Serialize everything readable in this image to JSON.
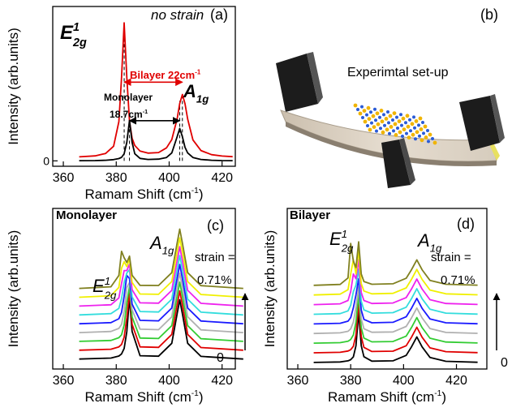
{
  "chart_data": [
    {
      "type": "line",
      "xlim": [
        356,
        425
      ],
      "ylim": [
        -3.5,
        100
      ],
      "xticks": [
        360,
        380,
        400,
        420
      ],
      "yticks": [
        0
      ],
      "x": [
        366,
        372,
        376,
        379,
        381,
        382,
        383,
        384,
        385,
        386,
        387,
        389,
        392,
        396,
        399,
        401,
        403,
        404,
        405,
        406,
        407,
        409,
        412,
        416,
        420,
        424
      ],
      "series": [
        {
          "color": "#e00000",
          "values": [
            2.6,
            3.2,
            4.8,
            9.5,
            25.4,
            54,
            89.4,
            54,
            25.6,
            14.7,
            10,
            6.3,
            5,
            5.4,
            8.4,
            13.8,
            27.2,
            37.2,
            43,
            37,
            27,
            13.5,
            6.7,
            4,
            3.1,
            2.7
          ]
        },
        {
          "color": "#000000",
          "values": [
            0.1,
            0.2,
            0.4,
            0.8,
            1.5,
            2.3,
            4.6,
            12,
            26.2,
            12,
            4.6,
            1.6,
            0.9,
            1.1,
            2.2,
            5.1,
            15.6,
            21,
            15.6,
            8.8,
            5.1,
            2.2,
            0.9,
            0.4,
            0.2,
            0.1
          ]
        }
      ],
      "x_label": {
        "text": "Ramam Shift (cm",
        "sup": "-1",
        "end": ")"
      },
      "y_label": "Intensity (arb.units)",
      "dashed_x": [
        383,
        385,
        404,
        405
      ],
      "arrows": [
        {
          "from": 383,
          "to": 405,
          "y": 51,
          "color": "#e00000"
        },
        {
          "from": 385,
          "to": 404,
          "y": 26,
          "color": "#000000"
        }
      ],
      "annotations": [
        {
          "text": "no strain",
          "style": "italic"
        },
        {
          "text": "(a)",
          "style": "normal"
        },
        {
          "text": "E",
          "sub": "2g",
          "sup": "1",
          "style": "bold-italic"
        },
        {
          "text": "A",
          "sub": "1g",
          "style": "bold-italic"
        },
        {
          "text": "Bilayer 22cm",
          "sup": "-1",
          "style": "bold",
          "color": "#e00000"
        },
        {
          "text": "Monolayer",
          "style": "bold"
        },
        {
          "text": "18.7cm",
          "sup": "-1",
          "style": "bold"
        }
      ]
    },
    {
      "type": "line",
      "xlim": [
        356,
        425
      ],
      "ylim": [
        0,
        100
      ],
      "xticks": [
        360,
        380,
        400,
        420
      ],
      "x": [
        366,
        378,
        381,
        382,
        383,
        384,
        385,
        386,
        389,
        396,
        401,
        403,
        404,
        405,
        407,
        412,
        428
      ],
      "series": [
        {
          "color": "#000000",
          "values": [
            6.2,
            6.8,
            8.1,
            9.4,
            12.8,
            23.3,
            44.3,
            23.4,
            8.3,
            8,
            16,
            34.4,
            43.1,
            34.4,
            16,
            7.9,
            6.2
          ]
        },
        {
          "color": "#e00000",
          "values": [
            11.7,
            12.3,
            13.8,
            15.3,
            19.8,
            31.8,
            47.8,
            27.9,
            13.8,
            13.5,
            21.5,
            39.9,
            48.6,
            39.9,
            21.5,
            13.4,
            11.7
          ]
        },
        {
          "color": "#33cc33",
          "values": [
            17.2,
            17.8,
            19.5,
            21.3,
            27.3,
            41.3,
            51.3,
            32.4,
            19.3,
            19,
            27,
            45.4,
            54.1,
            45.4,
            27,
            18.9,
            17.2
          ]
        },
        {
          "color": "#b0b0b0",
          "values": [
            22.7,
            23.4,
            25.3,
            27.8,
            35.8,
            50.8,
            53.8,
            36.9,
            24.8,
            24.5,
            32.5,
            50.9,
            59.6,
            50.9,
            32.5,
            24.4,
            22.7
          ]
        },
        {
          "color": "#1a1aff",
          "values": [
            28.2,
            28.9,
            31.3,
            35.3,
            45.3,
            58.3,
            56.3,
            40.4,
            30.3,
            30,
            38,
            56.4,
            65.1,
            56.4,
            38,
            29.9,
            28.2
          ]
        },
        {
          "color": "#33dddd",
          "values": [
            33.7,
            34.5,
            37.8,
            43.8,
            53.8,
            59.8,
            61.8,
            44.9,
            35.8,
            35.5,
            43.5,
            61.9,
            70.6,
            61.9,
            43.5,
            35.4,
            33.7
          ]
        },
        {
          "color": "#ee22ee",
          "values": [
            39.2,
            40,
            44.3,
            53.3,
            61.3,
            61.3,
            65.3,
            49.4,
            41.2,
            41,
            49,
            67.4,
            76.1,
            67.4,
            49,
            40.9,
            39.2
          ]
        },
        {
          "color": "#f0f000",
          "values": [
            44.7,
            45.6,
            50.8,
            62.8,
            66.8,
            63.8,
            68.8,
            53.9,
            46.7,
            46.5,
            54.5,
            72.9,
            81.6,
            72.9,
            54.5,
            46.4,
            44.7
          ]
        },
        {
          "color": "#808020",
          "values": [
            50.2,
            51.2,
            58.3,
            73.3,
            69.3,
            66.3,
            70.3,
            58.4,
            52.1,
            52,
            60,
            78.4,
            87.1,
            78.4,
            60,
            51.9,
            50.2
          ]
        }
      ],
      "x_label": {
        "text": "Ramam Shift (cm",
        "sup": "-1",
        "end": ")"
      },
      "y_label": "Intensity (arb.units)",
      "annotations": [
        {
          "text": "Monolayer",
          "style": "bold"
        },
        {
          "text": "E",
          "sub": "2g",
          "sup": "1",
          "style": "serif-italic"
        },
        {
          "text": "A",
          "sub": "1g",
          "style": "serif-italic"
        },
        {
          "text": "(c)",
          "style": "normal"
        },
        {
          "text": "strain =",
          "style": "normal"
        },
        {
          "text": "0.71%",
          "style": "normal"
        },
        {
          "text": "0",
          "style": "normal"
        }
      ]
    },
    {
      "type": "line",
      "xlim": [
        356,
        431.5
      ],
      "ylim": [
        0,
        100
      ],
      "xticks": [
        360,
        380,
        400,
        420
      ],
      "x": [
        366,
        376,
        379,
        380,
        381,
        382,
        383,
        384,
        385,
        388,
        396,
        401,
        403,
        405,
        407,
        410,
        416,
        428
      ],
      "series": [
        {
          "color": "#000000",
          "values": [
            4.1,
            4.4,
            5.1,
            5.8,
            7.6,
            14.5,
            35.2,
            14.5,
            7.7,
            4.9,
            5.1,
            8.5,
            13.8,
            20,
            13.8,
            7.2,
            4.8,
            4.2
          ]
        },
        {
          "color": "#e00000",
          "values": [
            10.1,
            10.4,
            11.2,
            12,
            14.2,
            21.2,
            41.2,
            20.2,
            13.5,
            10.9,
            11.1,
            14.5,
            19.8,
            26,
            19.8,
            13.2,
            10.8,
            10.2
          ]
        },
        {
          "color": "#33cc33",
          "values": [
            16.1,
            16.4,
            17.3,
            18.4,
            21.2,
            29.2,
            46.2,
            25.7,
            19.3,
            16.9,
            17.1,
            20.5,
            25.8,
            32,
            25.8,
            19.2,
            16.8,
            16.2
          ]
        },
        {
          "color": "#b0b0b0",
          "values": [
            22.1,
            22.5,
            23.5,
            25,
            29.2,
            38.2,
            51.2,
            31.2,
            25.1,
            22.9,
            23.1,
            26.5,
            31.8,
            38,
            31.8,
            25.2,
            22.8,
            22.2
          ]
        },
        {
          "color": "#1a1aff",
          "values": [
            28.1,
            28.5,
            29.8,
            32,
            38.2,
            46.2,
            56.2,
            36.7,
            30.9,
            28.8,
            29.1,
            32.5,
            37.8,
            44,
            37.8,
            31.2,
            28.8,
            28.2
          ]
        },
        {
          "color": "#33dddd",
          "values": [
            34.1,
            34.5,
            36.2,
            39.7,
            48.2,
            52.2,
            62.2,
            42.2,
            36.8,
            34.8,
            35.1,
            38.5,
            43.8,
            50,
            43.8,
            37.2,
            34.8,
            34.2
          ]
        },
        {
          "color": "#ee22ee",
          "values": [
            40.1,
            40.6,
            42.7,
            48.2,
            59.2,
            56.2,
            68.2,
            47.7,
            42.7,
            40.8,
            41.1,
            44.5,
            49.8,
            56,
            49.8,
            43.2,
            40.8,
            40.2
          ]
        },
        {
          "color": "#f0f000",
          "values": [
            46.1,
            46.6,
            49.4,
            59.2,
            68.2,
            59.2,
            74.2,
            53.2,
            48.6,
            46.8,
            47.1,
            50.5,
            55.8,
            62,
            55.8,
            49.2,
            46.8,
            46.2
          ]
        },
        {
          "color": "#808020",
          "values": [
            52.1,
            52.7,
            56.7,
            78.2,
            67.2,
            63.2,
            79.2,
            59.2,
            54.5,
            52.8,
            53.1,
            56.5,
            61.8,
            68,
            61.8,
            55.2,
            52.8,
            52.2
          ]
        }
      ],
      "x_label": {
        "text": "Ramam Shift (cm",
        "sup": "-1",
        "end": ")"
      },
      "y_label": "Intensity (arb.units)",
      "annotations": [
        {
          "text": "Bilayer",
          "style": "bold"
        },
        {
          "text": "E",
          "sub": "2g",
          "sup": "1",
          "style": "serif-italic"
        },
        {
          "text": "A",
          "sub": "1g",
          "style": "serif-italic"
        },
        {
          "text": "(d)",
          "style": "normal"
        },
        {
          "text": "strain =",
          "style": "normal"
        },
        {
          "text": "0.71%",
          "style": "normal"
        },
        {
          "text": "0",
          "style": "normal"
        }
      ]
    }
  ],
  "setup": {
    "label": "(b)",
    "title": "Experimtal set-up"
  }
}
